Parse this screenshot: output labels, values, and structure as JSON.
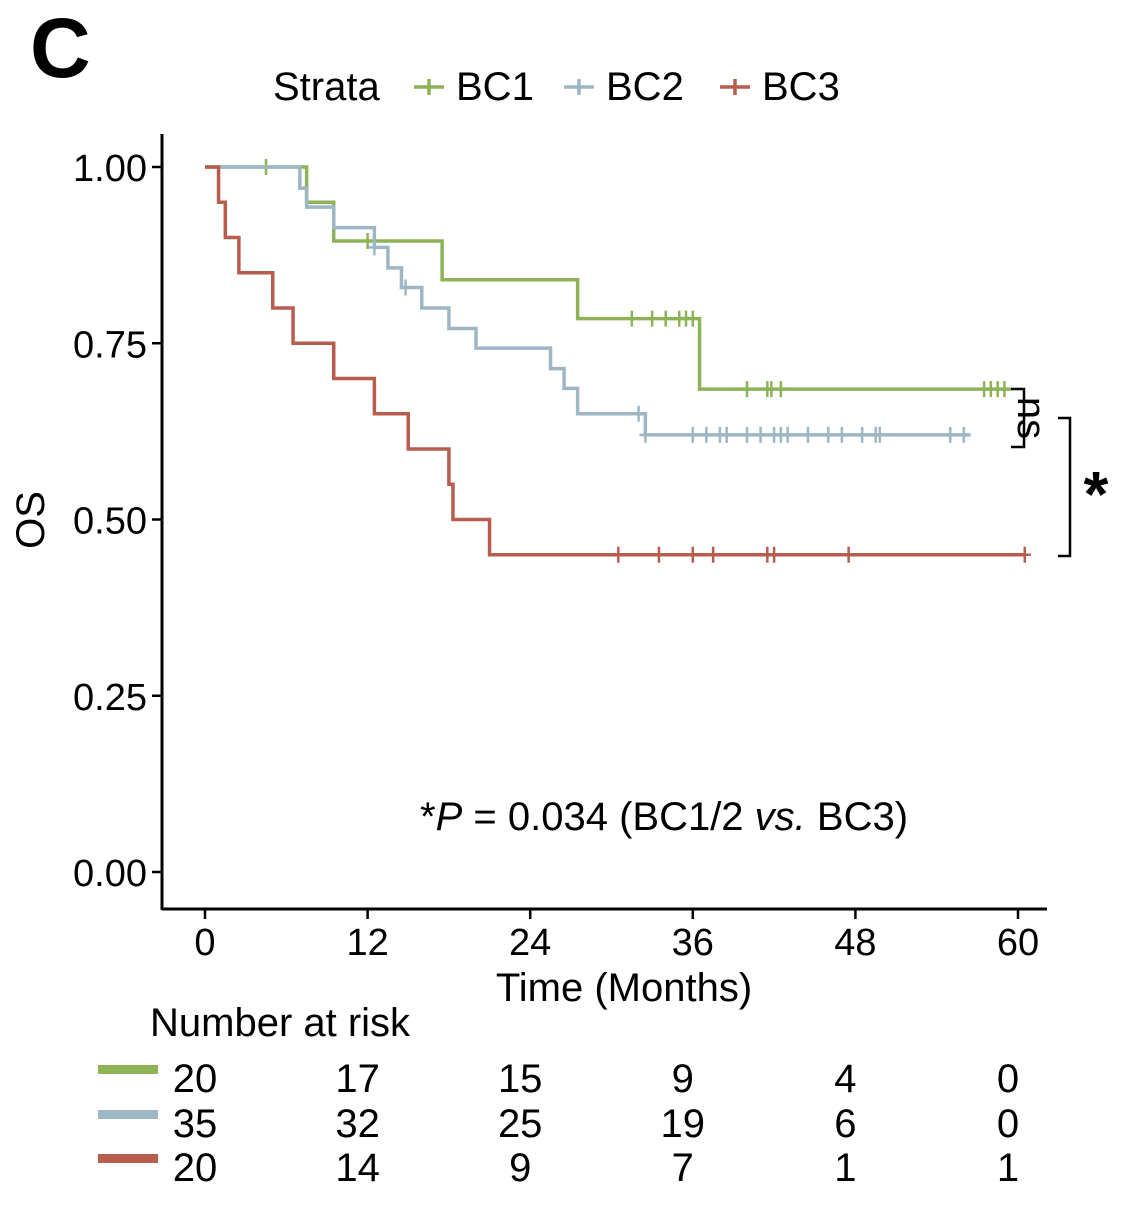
{
  "panel_label": "C",
  "chart_data": {
    "type": "line",
    "subtype": "kaplan-meier",
    "legend": {
      "title": "Strata",
      "position": "top"
    },
    "xlabel": "Time (Months)",
    "ylabel": "OS",
    "xlim": [
      0,
      60
    ],
    "ylim": [
      0,
      1
    ],
    "x_ticks": [
      0,
      12,
      24,
      36,
      48,
      60
    ],
    "y_ticks": [
      0.0,
      0.25,
      0.5,
      0.75,
      1.0
    ],
    "x_tick_labels": [
      "0",
      "12",
      "24",
      "36",
      "48",
      "60"
    ],
    "y_tick_labels": [
      "0.00",
      "0.25",
      "0.50",
      "0.75",
      "1.00"
    ],
    "grid": false,
    "series": [
      {
        "name": "BC1",
        "color": "#8db356",
        "steps": [
          [
            0,
            1.0
          ],
          [
            7.5,
            0.95
          ],
          [
            9.5,
            0.895
          ],
          [
            17.5,
            0.84
          ],
          [
            27.5,
            0.785
          ],
          [
            36.5,
            0.685
          ]
        ],
        "end_x": 59.5,
        "censor": [
          4.5,
          12,
          31.5,
          33,
          34,
          35,
          35.5,
          36,
          40,
          41.5,
          41.8,
          42.5,
          57.5,
          58,
          58.5,
          59
        ]
      },
      {
        "name": "BC2",
        "color": "#9db7c4",
        "steps": [
          [
            0,
            1.0
          ],
          [
            7,
            0.97
          ],
          [
            7.5,
            0.943
          ],
          [
            9.5,
            0.914
          ],
          [
            12.5,
            0.886
          ],
          [
            13.5,
            0.857
          ],
          [
            14.5,
            0.829
          ],
          [
            16,
            0.8
          ],
          [
            18,
            0.771
          ],
          [
            20,
            0.743
          ],
          [
            25.5,
            0.714
          ],
          [
            26.5,
            0.686
          ],
          [
            27.5,
            0.65
          ],
          [
            32.5,
            0.62
          ]
        ],
        "end_x": 56.5,
        "censor": [
          12.5,
          14.8,
          32,
          32.5,
          36,
          37,
          38,
          38.5,
          40,
          41,
          42,
          42.5,
          43,
          44.5,
          46,
          47,
          48.5,
          49.5,
          49.8,
          55,
          56
        ]
      },
      {
        "name": "BC3",
        "color": "#b85c4e",
        "steps": [
          [
            0,
            1.0
          ],
          [
            1,
            0.95
          ],
          [
            1.5,
            0.9
          ],
          [
            2.5,
            0.85
          ],
          [
            5,
            0.8
          ],
          [
            6.5,
            0.75
          ],
          [
            9.5,
            0.7
          ],
          [
            12.5,
            0.65
          ],
          [
            15,
            0.6
          ],
          [
            18,
            0.55
          ],
          [
            18.3,
            0.5
          ],
          [
            21,
            0.45
          ]
        ],
        "end_x": 60.5,
        "censor": [
          30.5,
          33.5,
          36,
          37.5,
          41.5,
          42,
          47.5,
          60.5
        ]
      }
    ],
    "annotation": {
      "prefix": "*",
      "p_label": "P",
      "equals_text": " = 0.034 (BC1/2 ",
      "vs_text": "vs.",
      "suffix": " BC3)"
    },
    "significance": [
      {
        "label": "ns",
        "between": [
          "BC1",
          "BC2"
        ]
      },
      {
        "label": "*",
        "between": [
          "BC1/2",
          "BC3"
        ]
      }
    ],
    "risk_table": {
      "title": "Number at risk",
      "times": [
        0,
        12,
        24,
        36,
        48,
        60
      ],
      "rows": [
        {
          "strata": "BC1",
          "values": [
            "20",
            "17",
            "15",
            "9",
            "4",
            "0"
          ]
        },
        {
          "strata": "BC2",
          "values": [
            "35",
            "32",
            "25",
            "19",
            "6",
            "0"
          ]
        },
        {
          "strata": "BC3",
          "values": [
            "20",
            "14",
            "9",
            "7",
            "1",
            "1"
          ]
        }
      ]
    }
  }
}
